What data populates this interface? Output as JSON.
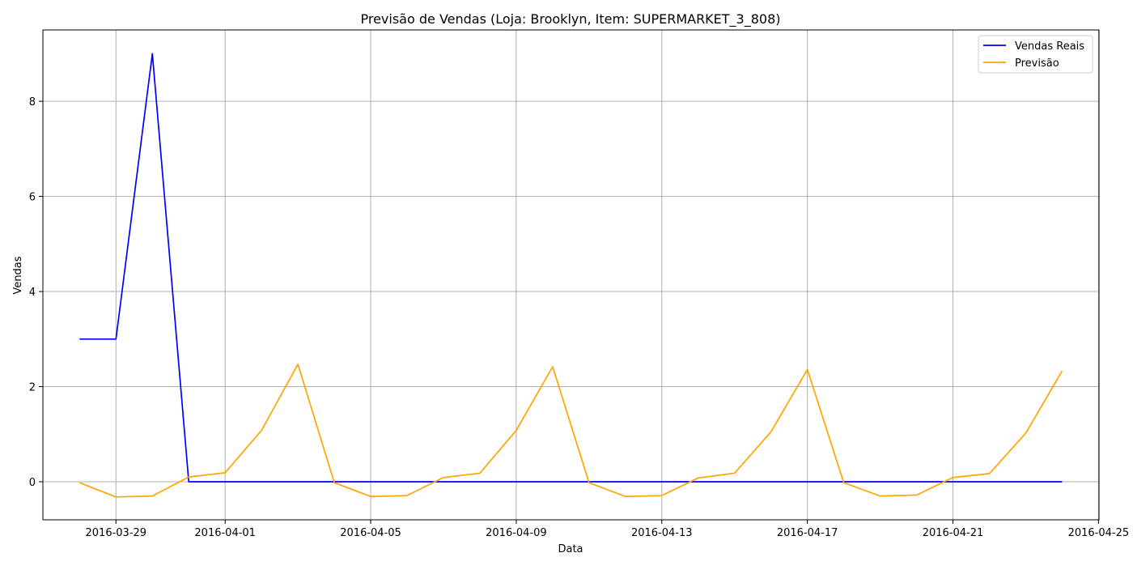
{
  "chart_data": {
    "type": "line",
    "title": "Previsão de Vendas (Loja: Brooklyn, Item: SUPERMARKET_3_808)",
    "xlabel": "Data",
    "ylabel": "Vendas",
    "x_start": "2016-03-28",
    "x": [
      "2016-03-28",
      "2016-03-29",
      "2016-03-30",
      "2016-03-31",
      "2016-04-01",
      "2016-04-02",
      "2016-04-03",
      "2016-04-04",
      "2016-04-05",
      "2016-04-06",
      "2016-04-07",
      "2016-04-08",
      "2016-04-09",
      "2016-04-10",
      "2016-04-11",
      "2016-04-12",
      "2016-04-13",
      "2016-04-14",
      "2016-04-15",
      "2016-04-16",
      "2016-04-17",
      "2016-04-18",
      "2016-04-19",
      "2016-04-20",
      "2016-04-21",
      "2016-04-22",
      "2016-04-23",
      "2016-04-24"
    ],
    "series": [
      {
        "name": "Vendas Reais",
        "color": "#0000ff",
        "values": [
          3,
          3,
          9,
          0,
          0,
          0,
          0,
          0,
          0,
          0,
          0,
          0,
          0,
          0,
          0,
          0,
          0,
          0,
          0,
          0,
          0,
          0,
          0,
          0,
          0,
          0,
          0,
          0
        ]
      },
      {
        "name": "Previsão",
        "color": "#ffa500",
        "values": [
          -0.02,
          -0.32,
          -0.3,
          0.1,
          0.19,
          1.08,
          2.47,
          -0.02,
          -0.31,
          -0.29,
          0.09,
          0.18,
          1.08,
          2.42,
          -0.02,
          -0.31,
          -0.29,
          0.08,
          0.18,
          1.05,
          2.36,
          -0.02,
          -0.3,
          -0.28,
          0.09,
          0.17,
          1.02,
          2.33
        ]
      }
    ],
    "x_ticks": [
      "2016-03-29",
      "2016-04-01",
      "2016-04-05",
      "2016-04-09",
      "2016-04-13",
      "2016-04-17",
      "2016-04-21",
      "2016-04-25"
    ],
    "y_ticks": [
      0,
      2,
      4,
      6,
      8
    ],
    "xlim": [
      "2016-03-26T23:48",
      "2016-04-25T00:21"
    ],
    "ylim": [
      -0.8,
      9.5
    ],
    "grid": true,
    "legend_position": "top-right"
  }
}
